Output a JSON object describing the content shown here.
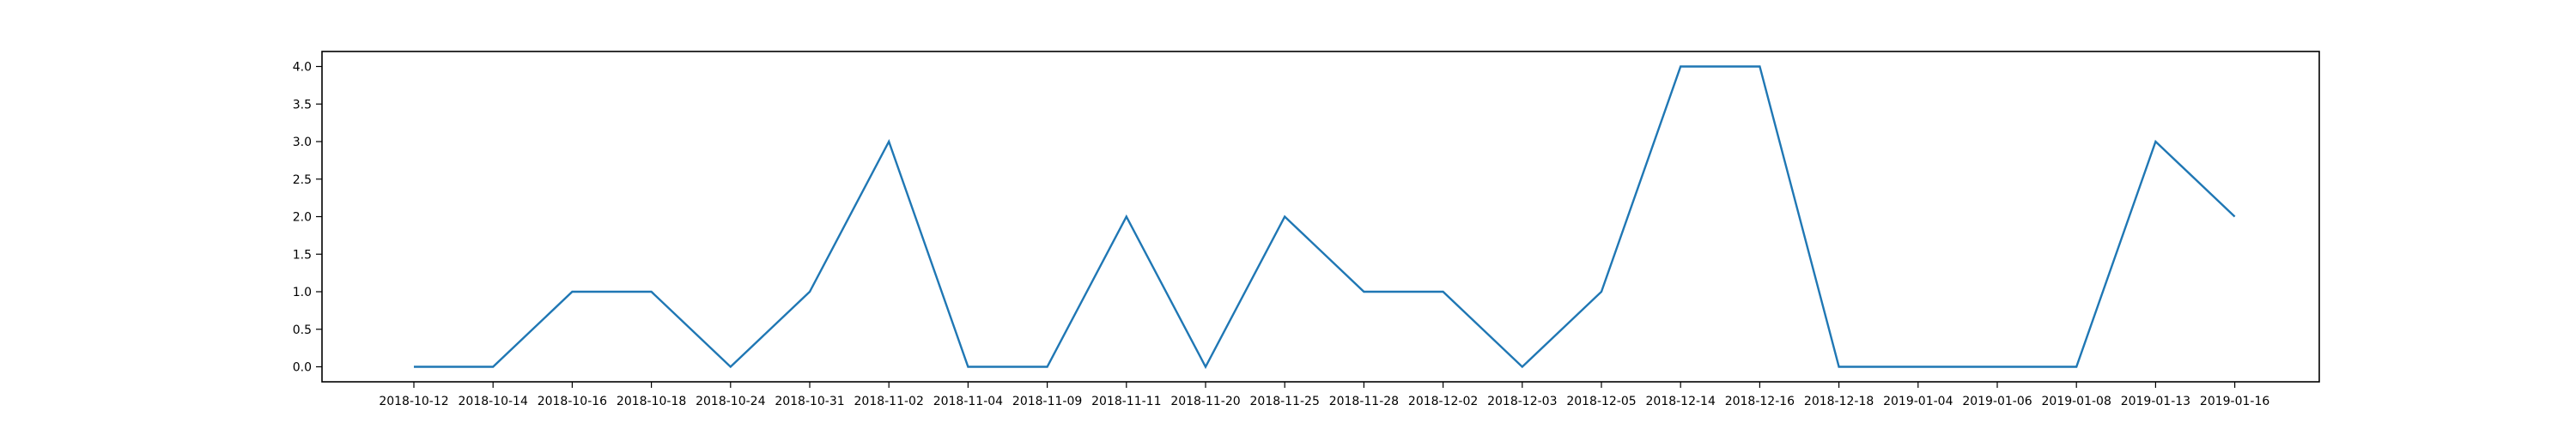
{
  "chart_data": {
    "type": "line",
    "title": "",
    "xlabel": "",
    "ylabel": "",
    "categories": [
      "2018-10-12",
      "2018-10-14",
      "2018-10-16",
      "2018-10-18",
      "2018-10-24",
      "2018-10-31",
      "2018-11-02",
      "2018-11-04",
      "2018-11-09",
      "2018-11-11",
      "2018-11-20",
      "2018-11-25",
      "2018-11-28",
      "2018-12-02",
      "2018-12-03",
      "2018-12-05",
      "2018-12-14",
      "2018-12-16",
      "2018-12-18",
      "2019-01-04",
      "2019-01-06",
      "2019-01-08",
      "2019-01-13",
      "2019-01-16"
    ],
    "series": [
      {
        "values": [
          0,
          0,
          1,
          1,
          0,
          1,
          3,
          0,
          0,
          2,
          0,
          2,
          1,
          1,
          0,
          1,
          4,
          4,
          0,
          0,
          0,
          0,
          3,
          2
        ]
      }
    ],
    "ylim": [
      -0.2,
      4.2
    ],
    "yticks": [
      "0.0",
      "0.5",
      "1.0",
      "1.5",
      "2.0",
      "2.5",
      "3.0",
      "3.5",
      "4.0"
    ],
    "grid": false,
    "line_color": "#1f77b4"
  }
}
